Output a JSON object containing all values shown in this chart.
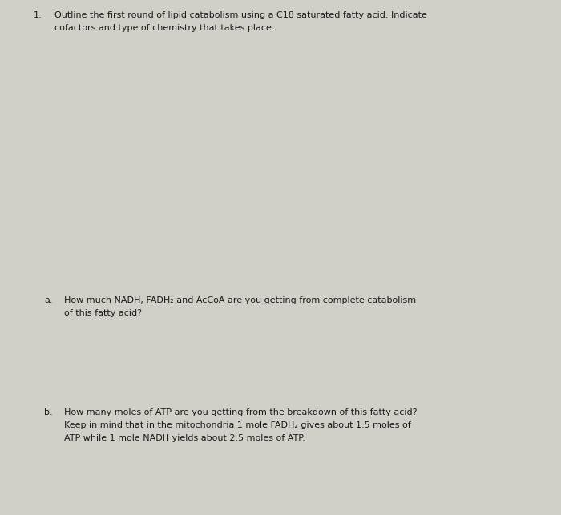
{
  "background_color": "#d0cfc8",
  "text_color": "#1a1a1a",
  "figsize": [
    7.0,
    6.43
  ],
  "dpi": 100,
  "question_number": "1.",
  "q1_prefix": "Outline the ",
  "q1_underline": "first round",
  "q1_suffix": " of lipid catabolism using a C18 saturated fatty acid. Indicate",
  "q1_line2": "cofactors and type of chemistry that takes place.",
  "qa_label": "a.",
  "qa_line1": "How much NADH, FADH₂ and AcCoA are you getting from complete catabolism",
  "qa_line2": "of this fatty acid?",
  "qb_label": "b.",
  "qb_line1": "How many moles of ATP are you getting from the breakdown of this fatty acid?",
  "qb_line2": "Keep in mind that in the mitochondria 1 mole FADH₂ gives about 1.5 moles of",
  "qb_line3": "ATP while 1 mole NADH yields about 2.5 moles of ATP.",
  "font_size_main": 8.0,
  "font_family": "DejaVu Sans"
}
